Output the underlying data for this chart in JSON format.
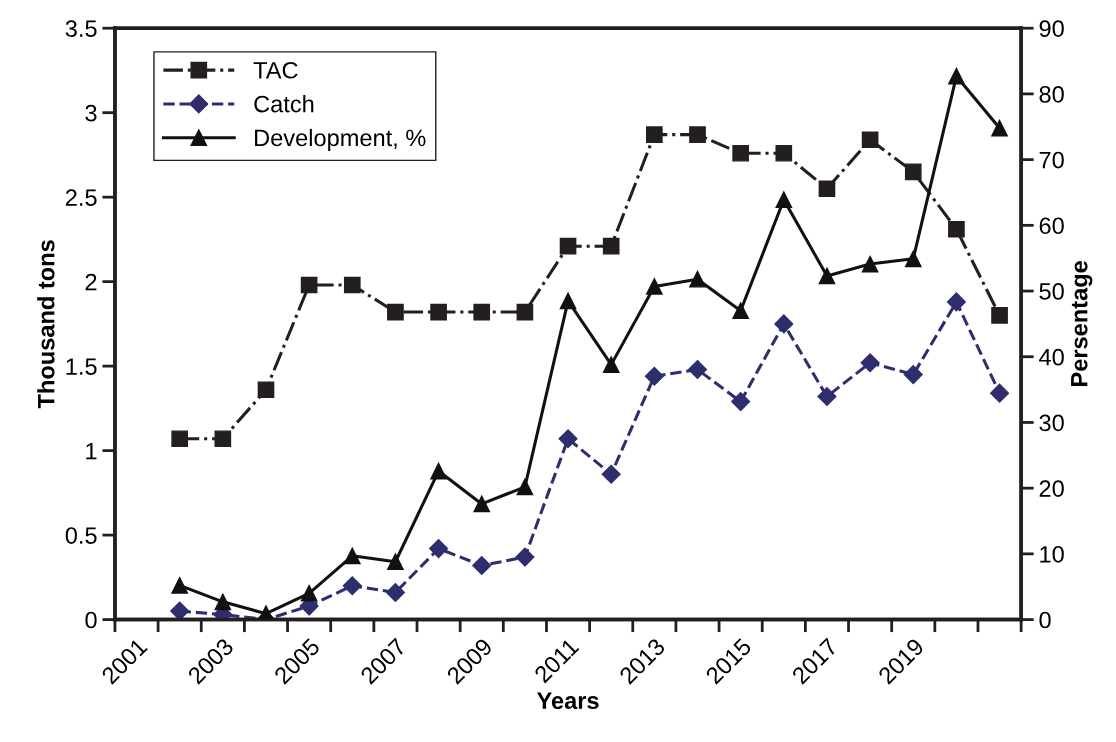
{
  "chart_data": {
    "type": "line",
    "xlabel": "Years",
    "ylabel": "Thousand tons",
    "y2label": "Persentage",
    "categories": [
      "2001",
      null,
      "2003",
      null,
      "2005",
      null,
      "2007",
      null,
      "2009",
      null,
      "2011",
      null,
      "2013",
      null,
      "2015",
      null,
      "2017",
      null,
      "2019",
      null,
      null
    ],
    "series": [
      {
        "name": "TAC",
        "color": "#231f20",
        "marker": "square",
        "line_style": "dashdot",
        "values": [
          null,
          1.07,
          1.07,
          1.36,
          1.98,
          1.98,
          1.82,
          1.82,
          1.82,
          1.82,
          2.21,
          2.21,
          2.87,
          2.87,
          2.76,
          2.76,
          2.55,
          2.84,
          2.65,
          2.31,
          1.8
        ]
      },
      {
        "name": "Catch",
        "color": "#2e2e6e",
        "marker": "diamond",
        "line_style": "dashed",
        "values": [
          null,
          0.05,
          0.03,
          0.0,
          0.08,
          0.2,
          0.16,
          0.42,
          0.32,
          0.37,
          1.07,
          0.86,
          1.44,
          1.48,
          1.29,
          1.75,
          1.32,
          1.52,
          1.45,
          1.88,
          1.34
        ]
      },
      {
        "name": "Development, %",
        "color": "#111111",
        "marker": "triangle",
        "line_style": "solid",
        "axis": "y2",
        "values": [
          null,
          5.2,
          2.7,
          0.9,
          4.0,
          9.7,
          8.8,
          22.6,
          17.6,
          20.2,
          48.5,
          38.8,
          50.7,
          51.8,
          47.0,
          63.9,
          52.3,
          54.1,
          54.9,
          82.7,
          74.8
        ]
      }
    ],
    "ylim": [
      0,
      3.5
    ],
    "yticks": [
      0,
      0.5,
      1,
      1.5,
      2,
      2.5,
      3,
      3.5
    ],
    "y2lim": [
      0,
      90
    ],
    "y2ticks": [
      0,
      10,
      20,
      30,
      40,
      50,
      60,
      70,
      80,
      90
    ],
    "grid": false,
    "legend": "top left"
  }
}
